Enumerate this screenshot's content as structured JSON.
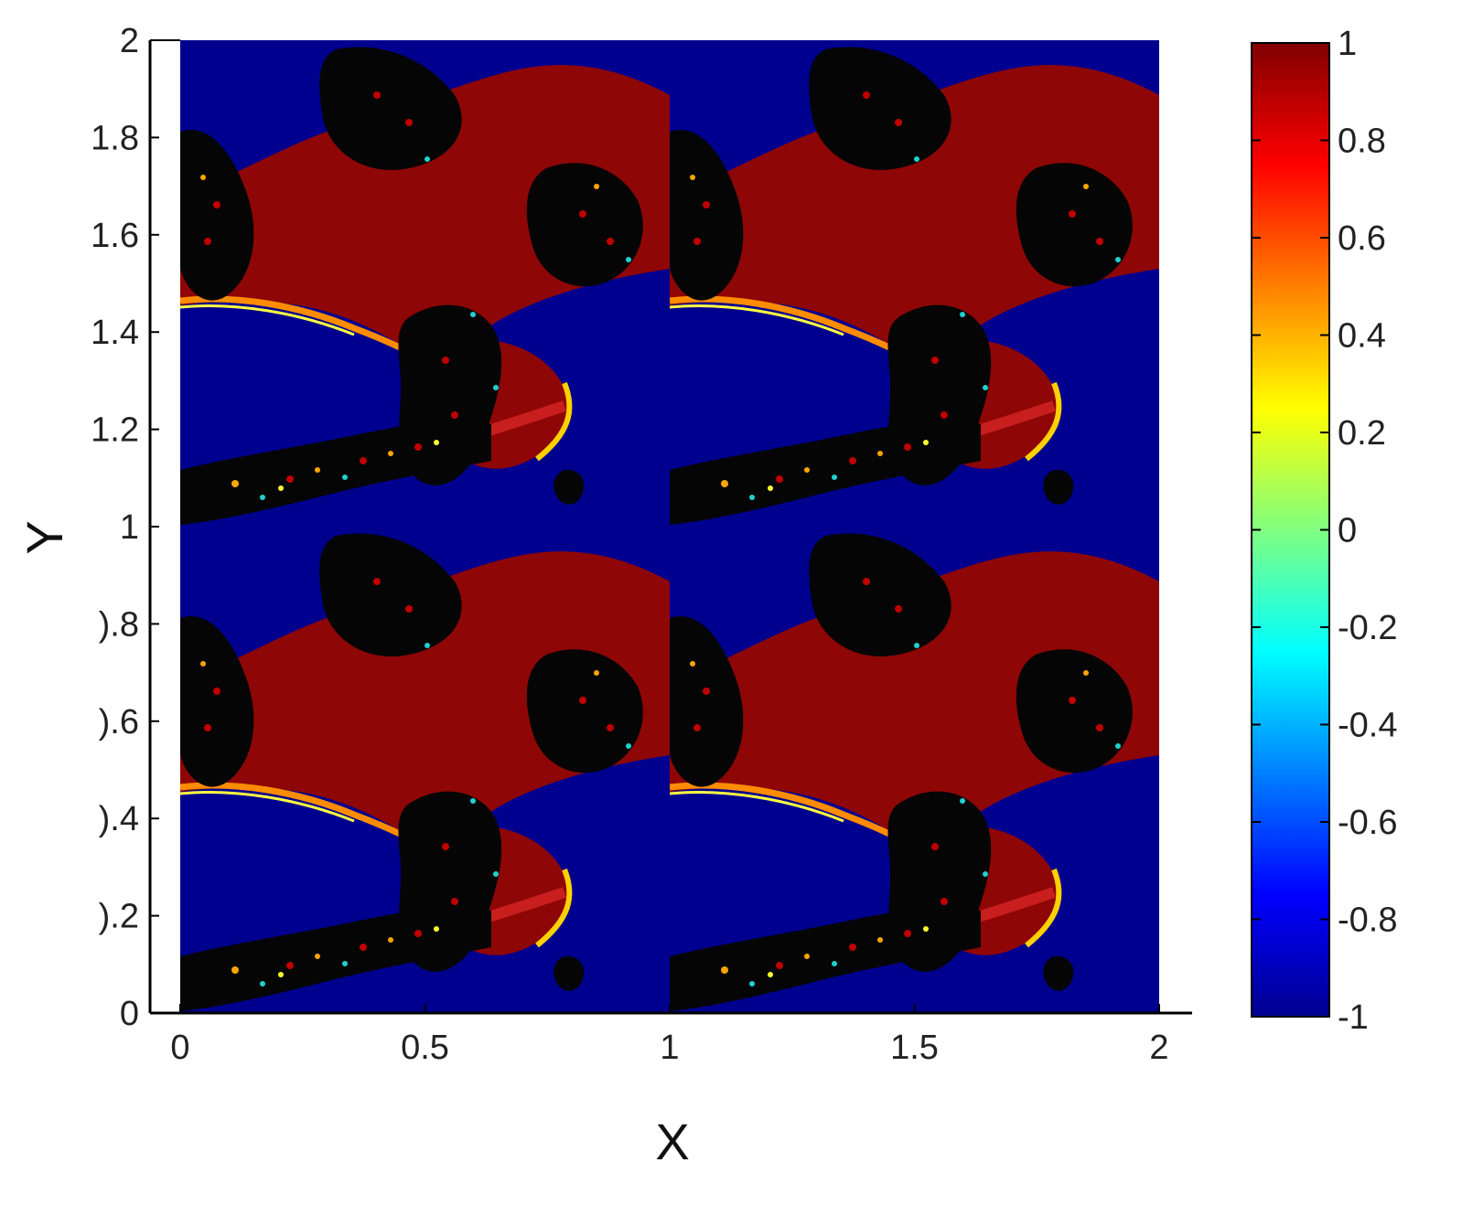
{
  "chart_data": {
    "type": "heatmap",
    "title": "",
    "xlabel": "X",
    "ylabel": "Y",
    "xlim": [
      0,
      2
    ],
    "ylim": [
      0,
      2
    ],
    "x_ticks": [
      {
        "value": 0,
        "label": "0"
      },
      {
        "value": 0.5,
        "label": "0.5"
      },
      {
        "value": 1,
        "label": "1"
      },
      {
        "value": 1.5,
        "label": "1.5"
      },
      {
        "value": 2,
        "label": "2"
      }
    ],
    "y_ticks": [
      {
        "value": 0,
        "label": "0"
      },
      {
        "value": 0.2,
        "label": ").2"
      },
      {
        "value": 0.4,
        "label": ").4"
      },
      {
        "value": 0.6,
        "label": ").6"
      },
      {
        "value": 0.8,
        "label": ").8"
      },
      {
        "value": 1,
        "label": "1"
      },
      {
        "value": 1.2,
        "label": "1.2"
      },
      {
        "value": 1.4,
        "label": "1.4"
      },
      {
        "value": 1.6,
        "label": "1.6"
      },
      {
        "value": 1.8,
        "label": "1.8"
      },
      {
        "value": 2,
        "label": "2"
      }
    ],
    "colorbar": {
      "range": [
        -1,
        1
      ],
      "colormap": "jet",
      "ticks": [
        {
          "value": 1,
          "label": "1"
        },
        {
          "value": 0.8,
          "label": "0.8"
        },
        {
          "value": 0.6,
          "label": "0.6"
        },
        {
          "value": 0.4,
          "label": "0.4"
        },
        {
          "value": 0.2,
          "label": "0.2"
        },
        {
          "value": 0,
          "label": "0"
        },
        {
          "value": -0.2,
          "label": "-0.2"
        },
        {
          "value": -0.4,
          "label": "-0.4"
        },
        {
          "value": -0.6,
          "label": "-0.6"
        },
        {
          "value": -0.8,
          "label": "-0.8"
        },
        {
          "value": -1,
          "label": "-1"
        }
      ]
    },
    "pattern_period": [
      1,
      1
    ],
    "grid": false,
    "colors": {
      "high": "#8b0000",
      "low": "#00008f",
      "boundary": "#000000"
    }
  }
}
